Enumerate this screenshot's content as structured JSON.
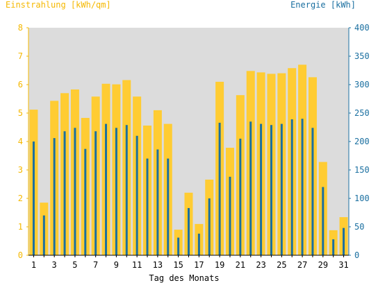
{
  "chart_data": {
    "type": "bar",
    "title": "",
    "ylabel_left": "Einstrahlung [kWh/qm]",
    "ylabel_right": "Energie [kWh]",
    "xlabel": "Tag des Monats",
    "ylim_left": [
      0,
      8
    ],
    "ylim_right": [
      0,
      400
    ],
    "yticks_left": [
      "0",
      "1",
      "2",
      "3",
      "4",
      "5",
      "6",
      "7",
      "8"
    ],
    "yticks_right": [
      "0",
      "50",
      "100",
      "150",
      "200",
      "250",
      "300",
      "350",
      "400"
    ],
    "xtick_labels": [
      "1",
      "3",
      "5",
      "7",
      "9",
      "11",
      "13",
      "15",
      "17",
      "19",
      "21",
      "23",
      "25",
      "27",
      "29",
      "31"
    ],
    "grid": false,
    "colors": {
      "plot_background": "#dcdcdc",
      "einstrahlung_bar": "#ffcc33",
      "energie_bar": "#1a6fa0",
      "left_axis": "#f5b800",
      "right_axis": "#1a6fa0"
    },
    "categories": [
      1,
      2,
      3,
      4,
      5,
      6,
      7,
      8,
      9,
      10,
      11,
      12,
      13,
      14,
      15,
      16,
      17,
      18,
      19,
      20,
      21,
      22,
      23,
      24,
      25,
      26,
      27,
      28,
      29,
      30,
      31
    ],
    "series": [
      {
        "axis": "left",
        "values": [
          5.12,
          1.85,
          5.43,
          5.7,
          5.83,
          4.83,
          5.58,
          6.03,
          6.01,
          6.16,
          5.58,
          4.56,
          5.1,
          4.62,
          0.9,
          2.2,
          1.1,
          2.66,
          6.1,
          3.78,
          5.63,
          6.48,
          6.43,
          6.38,
          6.4,
          6.58,
          6.7,
          6.26,
          3.28,
          0.88,
          1.34
        ]
      },
      {
        "axis": "right",
        "values": [
          200,
          70,
          206,
          218,
          224,
          187,
          218,
          231,
          224,
          229,
          210,
          170,
          186,
          170,
          31,
          83,
          38,
          100,
          233,
          138,
          205,
          235,
          231,
          229,
          231,
          239,
          240,
          224,
          120,
          28,
          48
        ]
      }
    ]
  }
}
